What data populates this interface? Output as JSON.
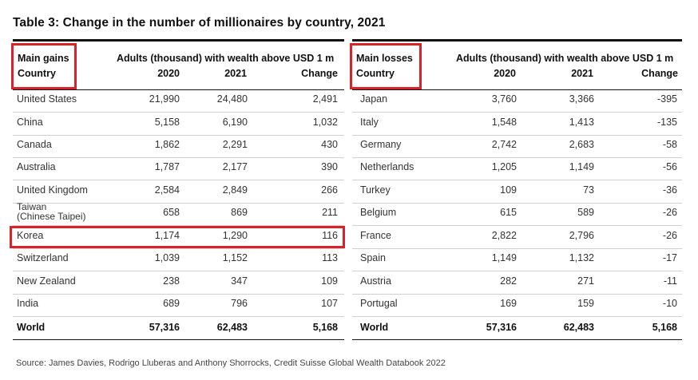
{
  "title": "Table 3: Change in the number of millionaires by country, 2021",
  "gains": {
    "group_label": "Main gains",
    "country_label": "Country",
    "span_header": "Adults (thousand) with wealth above USD 1 m",
    "col_2020": "2020",
    "col_2021": "2021",
    "col_change": "Change",
    "rows": [
      {
        "country": "United States",
        "v2020": "21,990",
        "v2021": "24,480",
        "change": "2,491"
      },
      {
        "country": "China",
        "v2020": "5,158",
        "v2021": "6,190",
        "change": "1,032"
      },
      {
        "country": "Canada",
        "v2020": "1,862",
        "v2021": "2,291",
        "change": "430"
      },
      {
        "country": "Australia",
        "v2020": "1,787",
        "v2021": "2,177",
        "change": "390"
      },
      {
        "country": "United Kingdom",
        "v2020": "2,584",
        "v2021": "2,849",
        "change": "266"
      },
      {
        "country": "Taiwan",
        "country_line2": "(Chinese Taipei)",
        "v2020": "658",
        "v2021": "869",
        "change": "211"
      },
      {
        "country": "Korea",
        "v2020": "1,174",
        "v2021": "1,290",
        "change": "116"
      },
      {
        "country": "Switzerland",
        "v2020": "1,039",
        "v2021": "1,152",
        "change": "113"
      },
      {
        "country": "New Zealand",
        "v2020": "238",
        "v2021": "347",
        "change": "109"
      },
      {
        "country": "India",
        "v2020": "689",
        "v2021": "796",
        "change": "107"
      }
    ],
    "total": {
      "country": "World",
      "v2020": "57,316",
      "v2021": "62,483",
      "change": "5,168"
    }
  },
  "losses": {
    "group_label": "Main losses",
    "country_label": "Country",
    "span_header": "Adults (thousand) with wealth above USD 1 m",
    "col_2020": "2020",
    "col_2021": "2021",
    "col_change": "Change",
    "rows": [
      {
        "country": "Japan",
        "v2020": "3,760",
        "v2021": "3,366",
        "change": "-395"
      },
      {
        "country": "Italy",
        "v2020": "1,548",
        "v2021": "1,413",
        "change": "-135"
      },
      {
        "country": "Germany",
        "v2020": "2,742",
        "v2021": "2,683",
        "change": "-58"
      },
      {
        "country": "Netherlands",
        "v2020": "1,205",
        "v2021": "1,149",
        "change": "-56"
      },
      {
        "country": "Turkey",
        "v2020": "109",
        "v2021": "73",
        "change": "-36"
      },
      {
        "country": "Belgium",
        "v2020": "615",
        "v2021": "589",
        "change": "-26"
      },
      {
        "country": "France",
        "v2020": "2,822",
        "v2021": "2,796",
        "change": "-26"
      },
      {
        "country": "Spain",
        "v2020": "1,149",
        "v2021": "1,132",
        "change": "-17"
      },
      {
        "country": "Austria",
        "v2020": "282",
        "v2021": "271",
        "change": "-11"
      },
      {
        "country": "Portugal",
        "v2020": "169",
        "v2021": "159",
        "change": "-10"
      }
    ],
    "total": {
      "country": "World",
      "v2020": "57,316",
      "v2021": "62,483",
      "change": "5,168"
    }
  },
  "highlight_color": "#d8232a",
  "source": "Source: James Davies, Rodrigo Lluberas and Anthony Shorrocks, Credit Suisse Global Wealth Databook 2022"
}
